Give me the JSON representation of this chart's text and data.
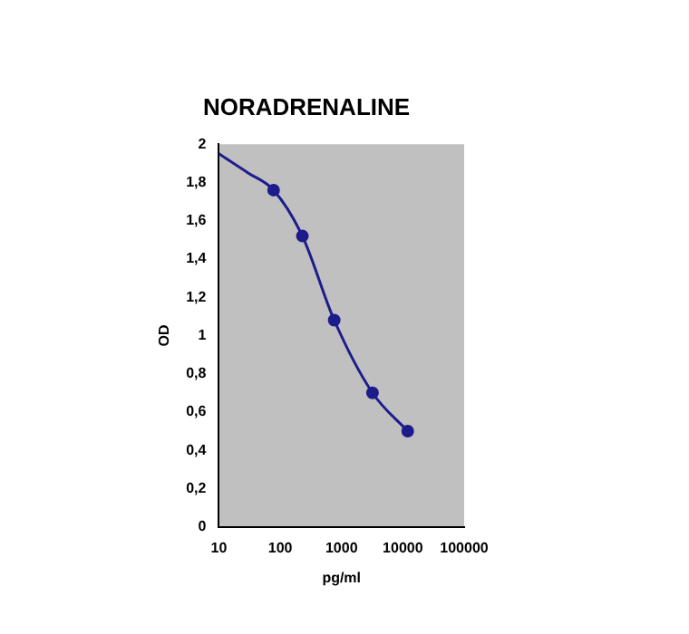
{
  "chart_data": {
    "type": "line",
    "title": "NORADRENALINE",
    "xlabel": "pg/ml",
    "ylabel": "OD",
    "log": "x",
    "xlim": [
      10,
      100000
    ],
    "xticks": [
      10,
      100,
      1000,
      10000,
      100000
    ],
    "ylim": [
      0,
      2
    ],
    "yticks": [
      0,
      {
        "value": 0.2,
        "label": "0,2"
      },
      {
        "value": 0.4,
        "label": "0,4"
      },
      {
        "value": 0.6,
        "label": "0,6"
      },
      {
        "value": 0.8,
        "label": "0,8"
      },
      1,
      {
        "value": 1.2,
        "label": "1,2"
      },
      {
        "value": 1.4,
        "label": "1,4"
      },
      {
        "value": 1.6,
        "label": "1,6"
      },
      {
        "value": 1.8,
        "label": "1,8"
      },
      2
    ],
    "grid": false,
    "legend": false,
    "series": [
      {
        "type": "line",
        "color": "#1c1c8c",
        "marker": "none",
        "x": [
          10,
          30,
          78,
          230,
          760,
          3200,
          12000
        ],
        "values": [
          1.95,
          1.85,
          1.76,
          1.52,
          1.08,
          0.7,
          0.5
        ]
      },
      {
        "type": "scatter",
        "color": "#1c1c8c",
        "marker": "circle",
        "x": [
          78,
          230,
          760,
          3200,
          12000
        ],
        "values": [
          1.76,
          1.52,
          1.08,
          0.7,
          0.5
        ]
      }
    ]
  }
}
